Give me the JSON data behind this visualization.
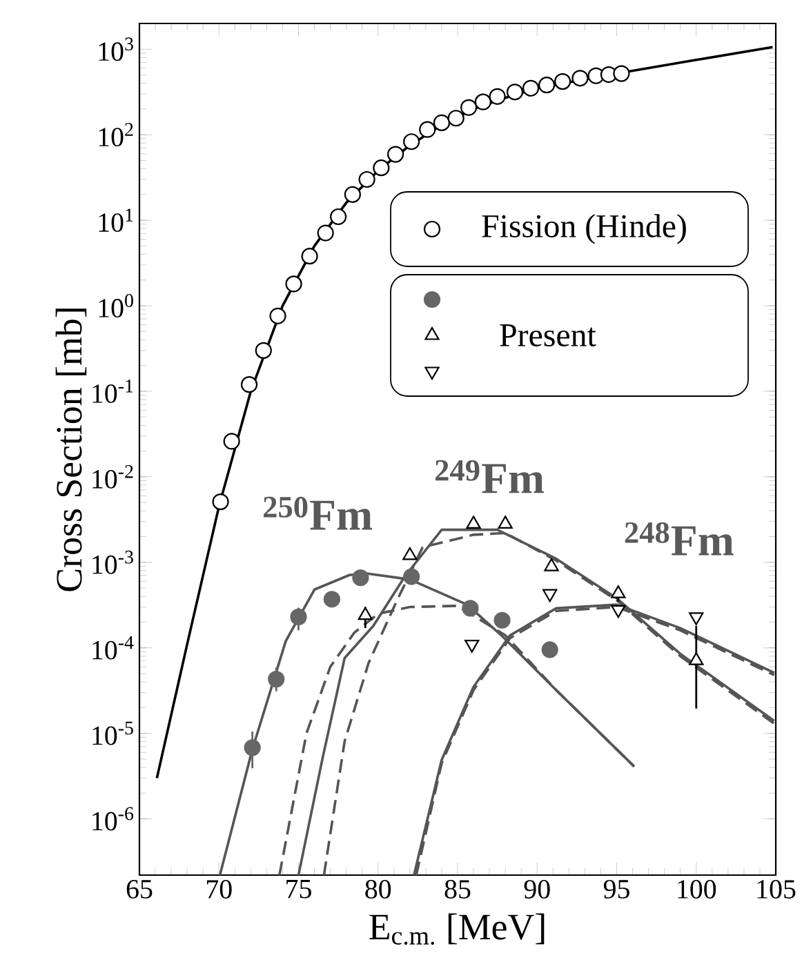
{
  "chart_data": {
    "type": "scatter",
    "xlabel": "E$_{c.m.}$ [MeV]",
    "ylabel": "Cross Section   [mb]",
    "log": "y",
    "grid": false,
    "legend": "right",
    "xlim": [
      65,
      105
    ],
    "ylim": [
      2.2e-07,
      2000
    ],
    "xticks": [
      65,
      70,
      75,
      80,
      85,
      90,
      95,
      100,
      105
    ],
    "yticks": [
      {
        "value": 1e-06,
        "label": "10$^{-6}$"
      },
      {
        "value": 1e-05,
        "label": "10$^{-5}$"
      },
      {
        "value": 0.0001,
        "label": "10$^{-4}$"
      },
      {
        "value": 0.001,
        "label": "10$^{-3}$"
      },
      {
        "value": 0.01,
        "label": "10$^{-2}$"
      },
      {
        "value": 0.1,
        "label": "10$^{-1}$"
      },
      {
        "value": 1,
        "label": "10$^{0}$"
      },
      {
        "value": 10,
        "label": "10$^{1}$"
      },
      {
        "value": 100,
        "label": "10$^{2}$"
      },
      {
        "value": 1000,
        "label": "10$^{3}$"
      }
    ],
    "annotations": [
      "$^{250}$Fm",
      "$^{249}$Fm",
      "$^{248}$Fm"
    ],
    "series": [
      {
        "name": "Fission (Hinde)",
        "marker": "circle",
        "color": "#000000",
        "x": [
          70.1,
          70.8,
          71.9,
          72.8,
          73.7,
          74.7,
          75.7,
          76.7,
          77.5,
          78.4,
          79.3,
          80.2,
          81.1,
          82.1,
          83.1,
          84.0,
          84.9,
          85.7,
          86.6,
          87.5,
          88.6,
          89.6,
          90.6,
          91.6,
          92.7,
          93.7,
          94.5,
          95.3
        ],
        "values": [
          0.0051,
          0.026,
          0.12,
          0.3,
          0.76,
          1.8,
          3.8,
          7.1,
          11,
          20,
          30,
          41,
          59,
          83,
          115,
          138,
          156,
          208,
          242,
          280,
          316,
          350,
          381,
          419,
          458,
          489,
          505,
          519
        ]
      },
      {
        "type": "line",
        "line_style": "solid",
        "color": "#000000",
        "x": [
          66.1,
          68,
          70,
          72,
          74,
          76,
          78,
          80,
          82,
          84,
          86,
          88,
          90,
          95,
          100,
          104.8
        ],
        "values": [
          3e-06,
          0.00011,
          0.0045,
          0.1,
          1.0,
          5,
          16,
          38,
          75,
          130,
          200,
          270,
          350,
          520,
          750,
          1060
        ]
      },
      {
        "type": "line",
        "line_style": "solid",
        "color": "#555555",
        "x": [
          70.06,
          72.1,
          74.2,
          76.0,
          78.2,
          79.3,
          82.0,
          85.6,
          87.75,
          91.2,
          96.1
        ],
        "values": [
          2.2e-07,
          6.5e-06,
          0.00012,
          0.00048,
          0.00071,
          0.00074,
          0.00063,
          0.00032,
          0.00014,
          3.2e-05,
          4.1e-06
        ]
      },
      {
        "type": "line",
        "line_style": "dashed",
        "color": "#555555",
        "x": [
          73.8,
          75.5,
          77,
          78.5,
          80,
          82,
          85,
          88,
          91.2,
          96.1
        ],
        "values": [
          2.2e-07,
          1e-05,
          6e-05,
          0.00015,
          0.00025,
          0.0003,
          0.00031,
          0.00014,
          3.2e-05,
          4.1e-06
        ]
      },
      {
        "type": "line",
        "line_style": "solid",
        "color": "#555555",
        "x": [
          75.0,
          76.5,
          77.9,
          79.7,
          81.7,
          84.0,
          87.5,
          91.2,
          95.0,
          99.0,
          104.9
        ],
        "values": [
          2.2e-07,
          5e-06,
          7.6e-05,
          0.00018,
          0.00069,
          0.0024,
          0.0024,
          0.0011,
          0.00038,
          8.5e-05,
          1.4e-05
        ]
      },
      {
        "type": "line",
        "line_style": "dashed",
        "color": "#555555",
        "x": [
          76.6,
          77.9,
          79.4,
          81.1,
          82.8,
          86,
          88,
          91.2,
          95.0,
          99.0,
          104.9
        ],
        "values": [
          2.2e-07,
          8.1e-06,
          6.6e-05,
          0.00033,
          0.0015,
          0.0021,
          0.0022,
          0.00105,
          0.00036,
          8e-05,
          1.3e-05
        ]
      },
      {
        "type": "line",
        "line_style": "solid",
        "color": "#555555",
        "x": [
          82.26,
          84.0,
          86.0,
          88.3,
          91.2,
          95.0,
          99.0,
          104.9
        ],
        "values": [
          2.2e-07,
          4.9e-06,
          3.5e-05,
          0.00014,
          0.00029,
          0.00032,
          0.00017,
          5.1e-05
        ]
      },
      {
        "type": "line",
        "line_style": "dashed",
        "color": "#555555",
        "x": [
          82.4,
          84.0,
          86.0,
          88.3,
          91.2,
          95.0,
          99.0,
          104.9
        ],
        "values": [
          2.2e-07,
          4.5e-06,
          3.2e-05,
          0.00013,
          0.00027,
          0.0003,
          0.00016,
          4.8e-05
        ]
      },
      {
        "marker": "circle",
        "color": "#666666",
        "x": [
          72.1,
          73.6,
          75.0,
          77.1,
          78.9,
          82.1,
          85.8,
          87.8,
          90.8
        ],
        "values": [
          6.8e-06,
          4.3e-05,
          0.00023,
          0.00037,
          0.00066,
          0.00068,
          0.00029,
          0.00021,
          9.5e-05
        ],
        "errors": [
          [
            3.9e-06,
            1.05e-05
          ],
          [
            3.1e-05,
            5.9e-05
          ],
          [
            0.00016,
            0.000295
          ],
          null,
          null,
          null,
          null,
          null,
          [
            8.5e-05,
            0.00011
          ]
        ]
      },
      {
        "name": "Present",
        "marker": "triangle",
        "color": "#000000",
        "x": [
          79.2,
          82.0,
          86.0,
          88.0,
          90.9,
          95.1,
          100.0
        ],
        "values": [
          0.00024,
          0.0012,
          0.0028,
          0.0028,
          0.00089,
          0.00043,
          7.1e-05
        ],
        "errors": [
          [
            0.00017,
            0.0003
          ],
          null,
          null,
          null,
          null,
          [
            0.00035,
            0.00052
          ],
          [
            1.95e-05,
            0.00018
          ]
        ]
      },
      {
        "marker": "triangle down",
        "color": "#000000",
        "x": [
          85.9,
          90.8,
          95.1,
          100.0
        ],
        "values": [
          0.00011,
          0.00043,
          0.00028,
          0.00023
        ]
      }
    ]
  }
}
